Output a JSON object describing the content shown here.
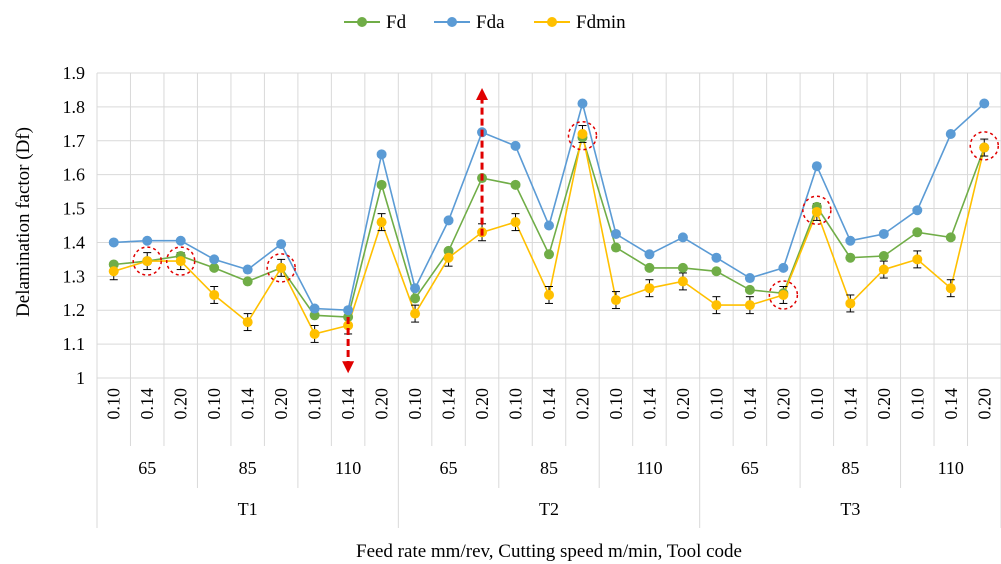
{
  "chart_data": {
    "type": "line",
    "title": "",
    "xlabel": "Feed rate mm/rev, Cutting speed m/min, Tool code",
    "ylabel": "Delamination factor (Df)",
    "ylim": [
      1,
      1.9
    ],
    "yticks": [
      "1",
      "1.1",
      "1.2",
      "1.3",
      "1.4",
      "1.5",
      "1.6",
      "1.7",
      "1.8",
      "1.9"
    ],
    "grid": true,
    "legend_position": "top-center",
    "feed_rates": [
      "0.10",
      "0.14",
      "0.20",
      "0.10",
      "0.14",
      "0.20",
      "0.10",
      "0.14",
      "0.20",
      "0.10",
      "0.14",
      "0.20",
      "0.10",
      "0.14",
      "0.20",
      "0.10",
      "0.14",
      "0.20",
      "0.10",
      "0.14",
      "0.20",
      "0.10",
      "0.14",
      "0.20",
      "0.10",
      "0.14",
      "0.20"
    ],
    "cutting_speeds": [
      "65",
      "85",
      "110",
      "65",
      "85",
      "110",
      "65",
      "85",
      "110"
    ],
    "tool_codes": [
      "T1",
      "T2",
      "T3"
    ],
    "series": [
      {
        "name": "Fd",
        "color": "#70ad47",
        "values": [
          1.335,
          1.345,
          1.36,
          1.325,
          1.285,
          1.325,
          1.185,
          1.18,
          1.57,
          1.235,
          1.375,
          1.59,
          1.57,
          1.365,
          1.71,
          1.385,
          1.325,
          1.325,
          1.315,
          1.26,
          1.25,
          1.505,
          1.355,
          1.36,
          1.43,
          1.415,
          1.68
        ]
      },
      {
        "name": "Fda",
        "color": "#5b9bd5",
        "values": [
          1.4,
          1.405,
          1.405,
          1.35,
          1.32,
          1.395,
          1.205,
          1.2,
          1.66,
          1.265,
          1.465,
          1.725,
          1.685,
          1.45,
          1.81,
          1.425,
          1.365,
          1.415,
          1.355,
          1.295,
          1.325,
          1.625,
          1.405,
          1.425,
          1.495,
          1.72,
          1.81
        ]
      },
      {
        "name": "Fdmin",
        "color": "#ffc000",
        "values": [
          1.315,
          1.345,
          1.345,
          1.245,
          1.165,
          1.325,
          1.13,
          1.155,
          1.46,
          1.19,
          1.355,
          1.43,
          1.46,
          1.245,
          1.72,
          1.23,
          1.265,
          1.285,
          1.215,
          1.215,
          1.245,
          1.49,
          1.22,
          1.32,
          1.35,
          1.265,
          1.68
        ]
      }
    ],
    "error_bar_halfwidth": 0.025,
    "highlight_circles": [
      {
        "index": 1,
        "value": 1.345
      },
      {
        "index": 2,
        "value": 1.345
      },
      {
        "index": 5,
        "value": 1.325
      },
      {
        "index": 14,
        "value": 1.715
      },
      {
        "index": 20,
        "value": 1.245
      },
      {
        "index": 21,
        "value": 1.495
      },
      {
        "index": 26,
        "value": 1.685
      }
    ],
    "arrows": [
      {
        "index": 7,
        "direction": "down",
        "from": 1.18,
        "to": 1.02
      },
      {
        "index": 11,
        "direction": "up",
        "from": 1.42,
        "to": 1.85
      }
    ]
  }
}
